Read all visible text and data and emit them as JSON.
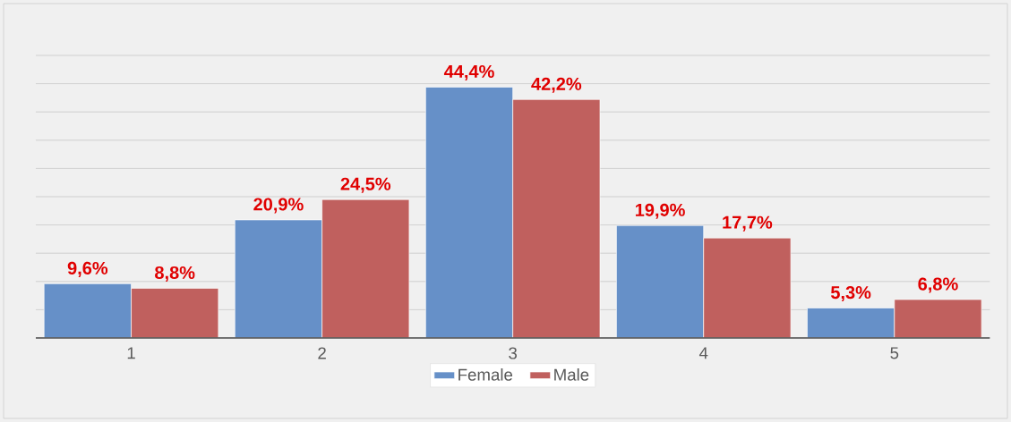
{
  "chart_data": {
    "type": "bar",
    "categories": [
      "1",
      "2",
      "3",
      "4",
      "5"
    ],
    "series": [
      {
        "name": "Female",
        "color": "#6690c8",
        "values": [
          9.6,
          20.9,
          44.4,
          19.9,
          5.3
        ],
        "value_labels": [
          "9,6%",
          "20,9%",
          "44,4%",
          "19,9%",
          "5,3%"
        ]
      },
      {
        "name": "Male",
        "color": "#c0605e",
        "values": [
          8.8,
          24.5,
          42.2,
          17.7,
          6.8
        ],
        "value_labels": [
          "8,8%",
          "24,5%",
          "42,2%",
          "17,7%",
          "6,8%"
        ]
      }
    ],
    "ylim": [
      0,
      50
    ],
    "yticks": [
      {
        "value": 0,
        "label": null
      },
      {
        "value": 5,
        "label": null
      },
      {
        "value": 10,
        "label": null
      },
      {
        "value": 15,
        "label": null
      },
      {
        "value": 20,
        "label": null
      },
      {
        "value": 25,
        "label": null
      },
      {
        "value": 30,
        "label": null
      },
      {
        "value": 35,
        "label": null
      },
      {
        "value": 40,
        "label": null
      },
      {
        "value": 45,
        "label": null
      },
      {
        "value": 50,
        "label": null
      }
    ],
    "tick_labels": "x",
    "grid": "y",
    "legend": "bottom"
  }
}
